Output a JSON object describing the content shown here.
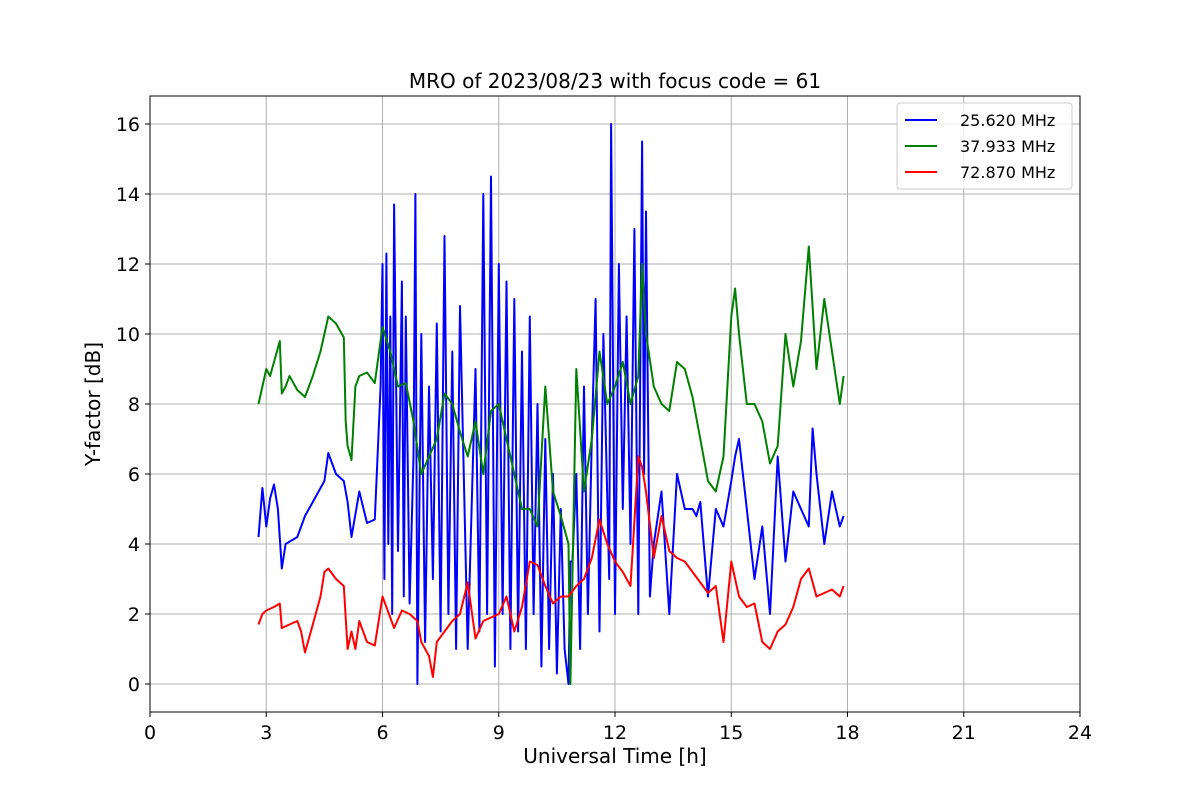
{
  "chart_data": {
    "type": "line",
    "title": "MRO of 2023/08/23 with focus code = 61",
    "xlabel": "Universal Time [h]",
    "ylabel": "Y-factor [dB]",
    "xlim": [
      0,
      24
    ],
    "ylim": [
      -0.8,
      16.8
    ],
    "x_ticks": [
      0,
      3,
      6,
      9,
      12,
      15,
      18,
      21,
      24
    ],
    "y_ticks": [
      0,
      2,
      4,
      6,
      8,
      10,
      12,
      14,
      16
    ],
    "grid": true,
    "legend_position": "top-right",
    "series": [
      {
        "name": "25.620 MHz",
        "color": "#0000ff",
        "x": [
          2.8,
          2.9,
          3.0,
          3.1,
          3.2,
          3.3,
          3.4,
          3.5,
          3.8,
          4.0,
          4.2,
          4.5,
          4.6,
          4.8,
          5.0,
          5.1,
          5.2,
          5.4,
          5.6,
          5.8,
          5.95,
          6.0,
          6.05,
          6.1,
          6.15,
          6.2,
          6.25,
          6.3,
          6.4,
          6.5,
          6.55,
          6.6,
          6.7,
          6.8,
          6.85,
          6.9,
          7.0,
          7.1,
          7.2,
          7.3,
          7.4,
          7.5,
          7.6,
          7.7,
          7.8,
          7.9,
          8.0,
          8.2,
          8.4,
          8.5,
          8.6,
          8.7,
          8.8,
          8.9,
          9.0,
          9.1,
          9.2,
          9.3,
          9.4,
          9.5,
          9.6,
          9.7,
          9.8,
          9.9,
          10.0,
          10.1,
          10.2,
          10.3,
          10.4,
          10.5,
          10.6,
          10.7,
          10.8,
          10.85,
          10.9,
          11.0,
          11.1,
          11.2,
          11.3,
          11.4,
          11.5,
          11.6,
          11.7,
          11.85,
          11.9,
          12.0,
          12.1,
          12.2,
          12.3,
          12.4,
          12.5,
          12.6,
          12.7,
          12.75,
          12.8,
          12.9,
          13.0,
          13.2,
          13.4,
          13.6,
          13.8,
          14.0,
          14.1,
          14.2,
          14.4,
          14.6,
          14.8,
          15.0,
          15.1,
          15.2,
          15.4,
          15.6,
          15.8,
          16.0,
          16.2,
          16.4,
          16.6,
          16.8,
          17.0,
          17.1,
          17.2,
          17.4,
          17.6,
          17.8,
          17.9
        ],
        "values": [
          4.2,
          5.6,
          4.5,
          5.3,
          5.7,
          5.0,
          3.3,
          4.0,
          4.2,
          4.8,
          5.2,
          5.8,
          6.6,
          6.0,
          5.8,
          5.2,
          4.2,
          5.5,
          4.6,
          4.7,
          8.5,
          12.0,
          3.0,
          12.3,
          4.0,
          10.5,
          2.0,
          13.7,
          3.8,
          11.5,
          2.5,
          10.5,
          2.3,
          6.5,
          14.0,
          0.0,
          10.0,
          1.2,
          8.5,
          3.0,
          10.3,
          1.5,
          12.8,
          2.0,
          9.5,
          1.0,
          10.8,
          1.0,
          9.0,
          1.5,
          14.0,
          2.0,
          14.5,
          0.5,
          12.0,
          2.0,
          11.5,
          1.0,
          11.0,
          1.5,
          9.5,
          1.0,
          10.5,
          2.0,
          8.0,
          0.5,
          7.0,
          1.0,
          6.0,
          0.3,
          5.0,
          1.0,
          0.0,
          3.5,
          3.5,
          6.0,
          1.0,
          8.5,
          2.0,
          7.0,
          11.0,
          1.5,
          10.0,
          3.0,
          16.0,
          2.0,
          12.0,
          5.0,
          10.5,
          4.0,
          13.0,
          2.0,
          15.5,
          6.0,
          13.5,
          2.5,
          4.0,
          5.5,
          2.0,
          6.0,
          5.0,
          5.0,
          4.8,
          5.2,
          2.5,
          5.0,
          4.5,
          5.8,
          6.5,
          7.0,
          5.0,
          3.0,
          4.5,
          2.0,
          6.5,
          3.5,
          5.5,
          5.0,
          4.5,
          7.3,
          6.0,
          4.0,
          5.5,
          4.5,
          4.8
        ]
      },
      {
        "name": "37.933 MHz",
        "color": "#008000",
        "x": [
          2.8,
          2.9,
          3.0,
          3.1,
          3.2,
          3.35,
          3.4,
          3.5,
          3.6,
          3.8,
          4.0,
          4.2,
          4.4,
          4.6,
          4.8,
          5.0,
          5.05,
          5.1,
          5.2,
          5.3,
          5.4,
          5.6,
          5.8,
          6.0,
          6.2,
          6.4,
          6.6,
          6.8,
          7.0,
          7.2,
          7.4,
          7.6,
          7.8,
          8.0,
          8.2,
          8.4,
          8.6,
          8.8,
          9.0,
          9.2,
          9.4,
          9.6,
          9.8,
          10.0,
          10.2,
          10.4,
          10.6,
          10.8,
          10.85,
          10.9,
          11.0,
          11.2,
          11.4,
          11.6,
          11.8,
          12.0,
          12.2,
          12.4,
          12.6,
          12.7,
          12.8,
          13.0,
          13.2,
          13.4,
          13.6,
          13.8,
          14.0,
          14.2,
          14.4,
          14.6,
          14.8,
          15.0,
          15.1,
          15.2,
          15.4,
          15.6,
          15.8,
          16.0,
          16.2,
          16.4,
          16.6,
          16.8,
          17.0,
          17.2,
          17.4,
          17.6,
          17.8,
          17.9
        ],
        "values": [
          8.0,
          8.5,
          9.0,
          8.8,
          9.2,
          9.8,
          8.3,
          8.5,
          8.8,
          8.4,
          8.2,
          8.8,
          9.5,
          10.5,
          10.3,
          9.9,
          7.5,
          6.8,
          6.4,
          8.5,
          8.8,
          8.9,
          8.6,
          10.2,
          9.5,
          8.5,
          8.6,
          7.5,
          6.0,
          6.5,
          7.0,
          8.3,
          8.0,
          7.2,
          6.5,
          7.5,
          6.0,
          7.8,
          8.0,
          7.0,
          6.0,
          5.0,
          5.0,
          4.5,
          8.5,
          5.5,
          4.8,
          4.0,
          0.0,
          3.0,
          9.0,
          5.5,
          7.0,
          9.5,
          8.0,
          8.5,
          9.2,
          8.0,
          8.8,
          12.0,
          10.0,
          8.5,
          8.0,
          7.8,
          9.2,
          9.0,
          8.2,
          7.0,
          5.8,
          5.5,
          6.5,
          10.5,
          11.3,
          10.0,
          8.0,
          8.0,
          7.5,
          6.3,
          6.8,
          10.0,
          8.5,
          9.8,
          12.5,
          9.0,
          11.0,
          9.5,
          8.0,
          8.8
        ]
      },
      {
        "name": "72.870 MHz",
        "color": "#ff0000",
        "x": [
          2.8,
          2.9,
          3.0,
          3.2,
          3.35,
          3.4,
          3.6,
          3.8,
          3.9,
          4.0,
          4.2,
          4.4,
          4.5,
          4.6,
          4.8,
          5.0,
          5.1,
          5.2,
          5.3,
          5.4,
          5.6,
          5.8,
          6.0,
          6.1,
          6.3,
          6.5,
          6.7,
          6.9,
          7.0,
          7.2,
          7.3,
          7.4,
          7.6,
          7.8,
          8.0,
          8.2,
          8.4,
          8.6,
          8.8,
          9.0,
          9.2,
          9.4,
          9.6,
          9.8,
          10.0,
          10.2,
          10.4,
          10.6,
          10.8,
          11.0,
          11.2,
          11.4,
          11.6,
          11.8,
          12.0,
          12.2,
          12.4,
          12.6,
          12.7,
          12.8,
          13.0,
          13.2,
          13.4,
          13.6,
          13.8,
          14.0,
          14.2,
          14.4,
          14.6,
          14.8,
          15.0,
          15.2,
          15.4,
          15.6,
          15.8,
          16.0,
          16.2,
          16.4,
          16.6,
          16.8,
          17.0,
          17.2,
          17.4,
          17.6,
          17.8,
          17.9
        ],
        "values": [
          1.7,
          2.0,
          2.1,
          2.2,
          2.3,
          1.6,
          1.7,
          1.8,
          1.5,
          0.9,
          1.7,
          2.5,
          3.2,
          3.3,
          3.0,
          2.8,
          1.0,
          1.5,
          1.0,
          1.8,
          1.2,
          1.1,
          2.5,
          2.2,
          1.6,
          2.1,
          2.0,
          1.8,
          1.2,
          0.8,
          0.2,
          1.2,
          1.5,
          1.8,
          2.0,
          2.9,
          1.3,
          1.8,
          1.9,
          2.0,
          2.5,
          1.5,
          2.2,
          3.5,
          3.4,
          2.8,
          2.3,
          2.5,
          2.5,
          2.8,
          3.0,
          3.6,
          4.7,
          4.0,
          3.5,
          3.2,
          2.8,
          6.5,
          6.2,
          5.5,
          3.6,
          4.8,
          3.8,
          3.6,
          3.5,
          3.2,
          2.9,
          2.6,
          2.8,
          1.2,
          3.5,
          2.5,
          2.2,
          2.3,
          1.2,
          1.0,
          1.5,
          1.7,
          2.2,
          3.0,
          3.3,
          2.5,
          2.6,
          2.7,
          2.5,
          2.8
        ]
      }
    ]
  }
}
